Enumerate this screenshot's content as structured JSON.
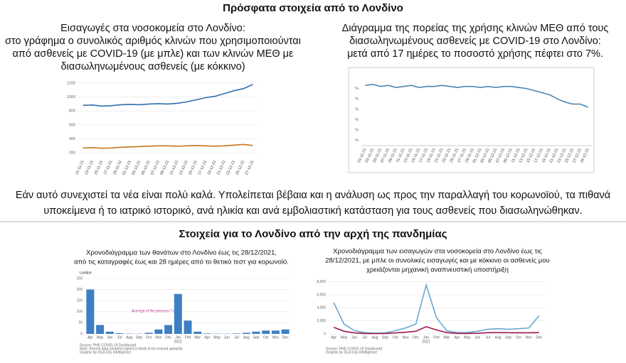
{
  "title": "Πρόσφατα στοιχεία από το Λονδίνο",
  "recent": {
    "left": {
      "caption": [
        "Εισαγωγές στα νοσοκομεία στο Λονδίνο:",
        "στο γράφημα ο συνολικός αριθμός κλινών που χρησιμοποιούνται",
        "από ασθενείς με COVID-19 (με μπλε) και των κλινών ΜΕΘ με",
        "διασωληνωμένους ασθενείς (με κόκκινο)"
      ],
      "chart": {
        "type": "line",
        "categories": [
          "21-11-21",
          "23-11-21",
          "25-11-21",
          "27-11-21",
          "29-11-21",
          "01-12-21",
          "03-12-21",
          "05-12-21",
          "07-12-21",
          "09-12-21",
          "11-12-21",
          "13-12-21",
          "15-12-21",
          "17-12-21",
          "19-12-21",
          "21-12-21",
          "23-12-21",
          "25-12-21",
          "27-12-21"
        ],
        "series": [
          {
            "color": "#2f6fad",
            "values": [
              880,
              885,
              870,
              875,
              890,
              895,
              890,
              900,
              905,
              900,
              910,
              930,
              960,
              990,
              1010,
              1050,
              1090,
              1120,
              1180
            ]
          },
          {
            "color": "#c8771f",
            "values": [
              270,
              275,
              265,
              270,
              280,
              285,
              290,
              295,
              300,
              300,
              295,
              300,
              305,
              300,
              295,
              300,
              310,
              320,
              305
            ]
          }
        ],
        "ylim": [
          130,
          1250
        ],
        "yticks": [
          200,
          400,
          600,
          800,
          1000,
          1200
        ],
        "grid": true
      }
    },
    "right": {
      "caption": [
        "Διάγραμμα της πορείας της χρήσης κλινών ΜΕΘ από τους",
        "διασωληνωμένους ασθενείς με COVID-19 στο Λονδίνο:",
        "μετά από 17 ημέρες το ποσοστό χρήσης πέφτει στο 7%."
      ],
      "chart": {
        "type": "line",
        "categories": [
          "01-11-21",
          "03-11-21",
          "05-11-21",
          "07-11-21",
          "09-11-21",
          "11-11-21",
          "13-11-21",
          "15-11-21",
          "17-11-21",
          "19-11-21",
          "21-11-21",
          "23-11-21",
          "25-11-21",
          "27-11-21",
          "29-11-21",
          "01-12-21",
          "03-12-21",
          "05-12-21",
          "07-12-21",
          "09-12-21",
          "11-12-21",
          "13-12-21",
          "15-12-21",
          "17-12-21",
          "19-12-21",
          "21-12-21",
          "23-12-21",
          "25-12-21",
          "27-12-21",
          "29-12-21"
        ],
        "series": [
          {
            "color": "#4a86b4",
            "values": [
              63,
              64,
              62,
              63,
              61,
              62,
              63,
              61,
              62,
              62,
              63,
              62,
              61,
              62,
              62,
              61,
              62,
              61,
              62,
              62,
              61,
              60,
              58,
              56,
              54,
              50,
              47,
              45,
              45,
              42
            ]
          }
        ],
        "ylim": [
          5,
          70
        ],
        "yticks": [
          {
            "value": 60,
            "label": "%"
          },
          {
            "value": 50,
            "label": "%"
          },
          {
            "value": 40,
            "label": "%"
          },
          {
            "value": 30,
            "label": "%"
          },
          {
            "value": 20,
            "label": "%"
          },
          {
            "value": 10,
            "label": "%"
          }
        ],
        "grid": false
      }
    }
  },
  "paragraph": [
    "Εάν αυτό συνεχιστεί τα νέα είναι πολύ καλά. Υπολείπεται βέβαια και η ανάλυση ως προς την παραλλαγή του κορωνοϊού, τα πιθανά",
    "υποκείμενα ή το ιατρικό ιστορικό, ανά ηλικία και ανά εμβολιαστική κατάσταση για τους ασθενείς που διασωληνώθηκαν."
  ],
  "pandemic": {
    "title": "Στοιχεία για το Λονδίνο από την αρχή της πανδημίας",
    "left": {
      "caption": [
        "Χρονοδιάγραμμα των θανάτων στο Λονδίνο έως τις 28/12/2021,",
        "από τις καταγραφές έως και 28 ημέρες από το θετικό τεστ για κορωνοϊό."
      ],
      "chart": {
        "type": "bar",
        "label": "London",
        "annotation": "Average of the previous 7 days",
        "year_label": "2021",
        "categories": [
          "Apr",
          "May",
          "Jun",
          "Jul",
          "Aug",
          "Sep",
          "Oct",
          "Nov",
          "Dec",
          "Jan",
          "Feb",
          "Mar",
          "Apr",
          "May",
          "Jun",
          "Jul",
          "Aug",
          "Sep",
          "Oct",
          "Nov",
          "Dec"
        ],
        "series": [
          {
            "color": "#3d7fc4",
            "values": [
              200,
              40,
              10,
              3,
              1,
              1,
              5,
              20,
              40,
              180,
              60,
              10,
              2,
              1,
              1,
              2,
              5,
              10,
              15,
              15,
              20
            ]
          }
        ],
        "ylim": [
          0,
          250
        ],
        "yticks": [
          0,
          50,
          100,
          150,
          200,
          250
        ],
        "grid": true
      },
      "notes": [
        "Source: PHE COVID-19 Dashboard",
        "Note: Recent data (shaded region) is likely to be revised upwards",
        "Graphic by GLA City Intelligence"
      ]
    },
    "right": {
      "caption": [
        "Χρονοδιάγραμμα των εισαγωγών στα νοσοκομεία στο Λονδίνο έως τις",
        "28/12/2021, με μπλε οι συνολικές εισαγωγές και με κόκκινο οι ασθενείς μου",
        "χρειάζονται μηχανική αναπνευστική υποστήριξη"
      ],
      "chart": {
        "type": "line",
        "year_label": "2021",
        "categories": [
          "Apr",
          "May",
          "Jun",
          "Jul",
          "Aug",
          "Sep",
          "Oct",
          "Nov",
          "Dec",
          "Jan",
          "Feb",
          "Mar",
          "Apr",
          "May",
          "Jun",
          "Jul",
          "Aug",
          "Sep",
          "Oct",
          "Nov",
          "Dec"
        ],
        "series": [
          {
            "color": "#6aa8d4",
            "values": [
              4800,
              1500,
              500,
              200,
              100,
              150,
              500,
              900,
              1500,
              7500,
              2500,
              500,
              200,
              200,
              400,
              700,
              800,
              700,
              800,
              900,
              2800
            ]
          },
          {
            "color": "#a0194f",
            "values": [
              1000,
              400,
              150,
              60,
              40,
              50,
              150,
              250,
              400,
              1100,
              600,
              200,
              80,
              60,
              100,
              180,
              200,
              180,
              170,
              170,
              200
            ]
          }
        ],
        "ylim": [
          0,
          8500
        ],
        "yticks": [
          0,
          {
            "value": 2000,
            "label": "2,000"
          },
          {
            "value": 4000,
            "label": "4,000"
          },
          {
            "value": 6000,
            "label": "6,000"
          },
          {
            "value": 8000,
            "label": "8,000"
          }
        ],
        "grid": true
      },
      "notes": [
        "Source: PHE COVID-19 Dashboard",
        "Graphic by GLA City Intelligence"
      ]
    }
  }
}
